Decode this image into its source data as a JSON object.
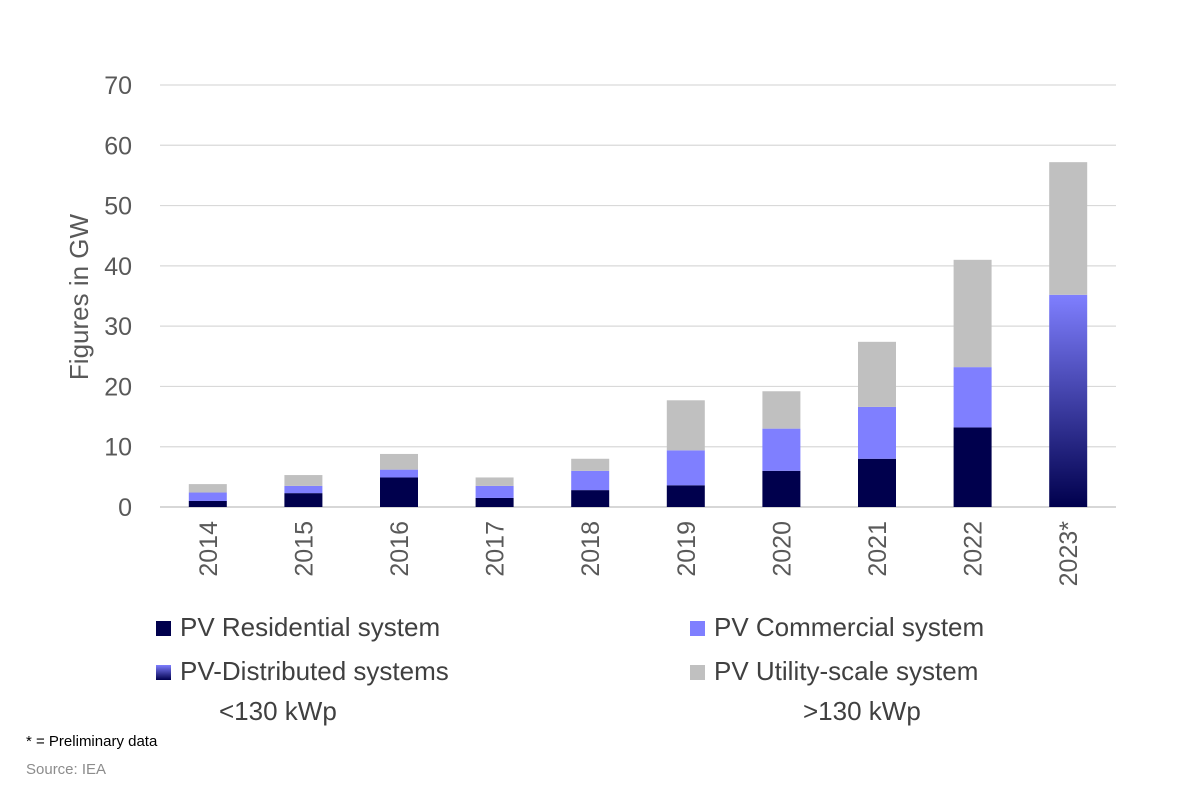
{
  "chart_data": {
    "type": "bar",
    "stacked": true,
    "title": "",
    "xlabel": "",
    "ylabel": "Figures in GW",
    "ylim": [
      0,
      70
    ],
    "yticks": [
      0,
      10,
      20,
      30,
      40,
      50,
      60,
      70
    ],
    "grid": true,
    "legend_position": "bottom",
    "categories": [
      "2014",
      "2015",
      "2016",
      "2017",
      "2018",
      "2019",
      "2020",
      "2021",
      "2022",
      "2023*"
    ],
    "series": [
      {
        "name": "PV Residential system",
        "color": "#00004d",
        "values": [
          1.0,
          2.3,
          4.9,
          1.5,
          2.8,
          3.6,
          6.0,
          8.0,
          13.2,
          null
        ]
      },
      {
        "name": "PV Commercial system",
        "color": "#7f7fff",
        "values": [
          1.4,
          1.2,
          1.3,
          2.0,
          3.2,
          5.8,
          7.0,
          8.6,
          10.0,
          null
        ]
      },
      {
        "name": "PV-Distributed systems",
        "color": "gradient(#00004d,#7f7fff)",
        "values": [
          null,
          null,
          null,
          null,
          null,
          null,
          null,
          null,
          null,
          35.2
        ]
      },
      {
        "name": "PV Utility-scale system",
        "color": "#c0c0c0",
        "values": [
          1.4,
          1.8,
          2.6,
          1.4,
          2.0,
          8.3,
          6.2,
          10.8,
          17.8,
          22.0
        ]
      }
    ]
  },
  "legend": {
    "items": [
      {
        "label": "PV Residential system",
        "sub": ""
      },
      {
        "label": "PV Commercial system",
        "sub": ""
      },
      {
        "label": "PV-Distributed systems",
        "sub": "<130 kWp"
      },
      {
        "label": "PV Utility-scale system",
        "sub": ">130 kWp"
      }
    ]
  },
  "footnotes": {
    "preliminary": "* = Preliminary data",
    "source": "Source: IEA"
  },
  "colors": {
    "residential": "#00004d",
    "commercial": "#7f7fff",
    "utility": "#c0c0c0",
    "gridline": "#d9d9d9",
    "text": "#595959"
  }
}
